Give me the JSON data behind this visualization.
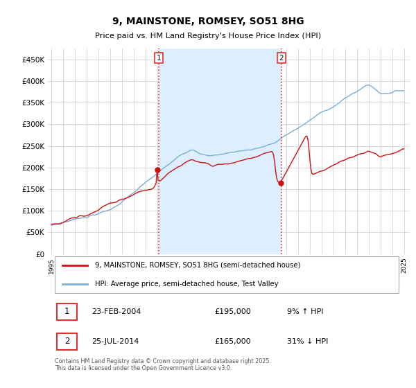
{
  "title": "9, MAINSTONE, ROMSEY, SO51 8HG",
  "subtitle": "Price paid vs. HM Land Registry's House Price Index (HPI)",
  "ylim": [
    0,
    475000
  ],
  "yticks": [
    0,
    50000,
    100000,
    150000,
    200000,
    250000,
    300000,
    350000,
    400000,
    450000
  ],
  "ytick_labels": [
    "£0",
    "£50K",
    "£100K",
    "£150K",
    "£200K",
    "£250K",
    "£300K",
    "£350K",
    "£400K",
    "£450K"
  ],
  "x_start_year": 1995,
  "x_end_year": 2025,
  "vline1_year": 2004.12,
  "vline2_year": 2014.56,
  "vline_color": "#dd3333",
  "vline_style": ":",
  "property_color": "#cc1111",
  "hpi_color": "#7aadd4",
  "shade_color": "#ddeeff",
  "legend_label1": "9, MAINSTONE, ROMSEY, SO51 8HG (semi-detached house)",
  "legend_label2": "HPI: Average price, semi-detached house, Test Valley",
  "annotation1_num": "1",
  "annotation1_date": "23-FEB-2004",
  "annotation1_price": "£195,000",
  "annotation1_hpi": "9% ↑ HPI",
  "annotation2_num": "2",
  "annotation2_date": "25-JUL-2014",
  "annotation2_price": "£165,000",
  "annotation2_hpi": "31% ↓ HPI",
  "footer": "Contains HM Land Registry data © Crown copyright and database right 2025.\nThis data is licensed under the Open Government Licence v3.0.",
  "bg_color": "#ffffff",
  "grid_color": "#cccccc"
}
